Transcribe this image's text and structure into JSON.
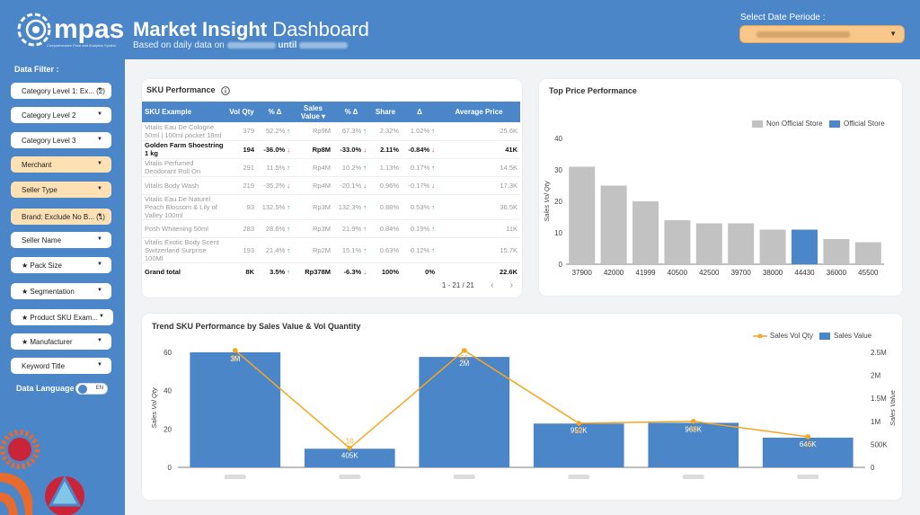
{
  "header": {
    "logo_text": "mpas",
    "logo_sub": "Comprehensive Price and Analytics System",
    "title_bold": "Market Insight",
    "title_rest": " Dashboard",
    "subtitle_prefix": "Based on daily data on",
    "subtitle_mid": "until",
    "date_label": "Select Date Periode :"
  },
  "sidebar": {
    "title": "Data Filter :",
    "filters": [
      {
        "label": "Category Level 1: Ex... (2)"
      },
      {
        "label": "Category Level 2"
      },
      {
        "label": "Category Level 3"
      },
      {
        "label": "Merchant"
      },
      {
        "label": "Seller Type"
      },
      {
        "label": "Brand: Exclude No B... (1)"
      },
      {
        "label": "Seller Name"
      },
      {
        "label": "★ Pack Size"
      },
      {
        "label": "★ Segmentation"
      },
      {
        "label": "★ Product SKU Exam..."
      },
      {
        "label": "★ Manufacturer"
      },
      {
        "label": "Keyword Title"
      }
    ],
    "language_label": "Data Language",
    "toggle_label": "EN"
  },
  "sku": {
    "title": "SKU Performance",
    "columns": [
      "SKU Example",
      "Vol Qty",
      "% Δ",
      "Sales Value ▾",
      "% Δ",
      "Share",
      "Δ",
      "Average Price"
    ],
    "rows": [
      [
        "Vitalis Eau De Cologne 50ml | 100ml pocket 18ml",
        "379",
        "52.2% ↑",
        "Rp9M",
        "67.3% ↑",
        "2.32%",
        "1.02% ↑",
        "25.6K"
      ],
      [
        "Golden Farm Shoestring 1 kg",
        "194",
        "-36.0% ↓",
        "Rp8M",
        "-33.0% ↓",
        "2.11%",
        "-0.84% ↓",
        "41K"
      ],
      [
        "Vitalis Perfumed Deodorant Roll On",
        "291",
        "11.5% ↑",
        "Rp4M",
        "10.2% ↑",
        "1.13%",
        "0.17% ↑",
        "14.5K"
      ],
      [
        "Vitalis Body Wash",
        "219",
        "-35.2% ↓",
        "Rp4M",
        "-20.1% ↓",
        "0.96%",
        "-0.17% ↓",
        "17.3K"
      ],
      [
        "Vitalis Eau De Naturel Peach Blossom & Lily of Valley 100ml",
        "93",
        "132.5% ↑",
        "Rp3M",
        "132.3% ↑",
        "0.88%",
        "0.53% ↑",
        "36.5K"
      ],
      [
        "Posh Whitening 50ml",
        "283",
        "28.6% ↑",
        "Rp3M",
        "21.9% ↑",
        "0.84%",
        "0.19% ↑",
        "11K"
      ],
      [
        "Vitalis Exotic Body Scent Switzerland Surprise 100Ml",
        "193",
        "21.4% ↑",
        "Rp2M",
        "15.1% ↑",
        "0.63%",
        "0.12% ↑",
        "15.7K"
      ]
    ],
    "total": [
      "Grand total",
      "8K",
      "3.5% ↑",
      "Rp378M",
      "-6.3% ↓",
      "100%",
      "0%",
      "22.6K"
    ],
    "pager": "1 - 21 / 21"
  },
  "top_price": {
    "title": "Top Price Performance",
    "legend": [
      "Non Official Store",
      "Official Store"
    ],
    "colors": {
      "non_official": "#c2c2c2",
      "official": "#4a86c8"
    },
    "ylabel": "Sales Vol Qty"
  },
  "trend": {
    "title": "Trend SKU Performance by Sales Value & Vol Quantity",
    "legend": [
      "Sales Vol Qty",
      "Sales Value"
    ],
    "ylabel_left": "Sales Vol Qty",
    "ylabel_right": "Sales Value"
  },
  "chart_data": [
    {
      "type": "bar",
      "title": "Top Price Performance",
      "categories": [
        "37900",
        "42000",
        "41999",
        "40500",
        "42500",
        "39700",
        "38000",
        "44430",
        "36000",
        "45500"
      ],
      "values": [
        31,
        25,
        20,
        14,
        13,
        13,
        11,
        11,
        8,
        7
      ],
      "store_type": [
        "Non Official Store",
        "Non Official Store",
        "Non Official Store",
        "Non Official Store",
        "Non Official Store",
        "Non Official Store",
        "Non Official Store",
        "Official Store",
        "Non Official Store",
        "Non Official Store"
      ],
      "ylabel": "Sales Vol Qty",
      "ylim": [
        0,
        40
      ],
      "yticks": [
        0,
        10,
        20,
        30,
        40
      ]
    },
    {
      "type": "bar",
      "title": "Trend SKU Performance by Sales Value & Vol Quantity",
      "categories": [
        "",
        "",
        "",
        "",
        "",
        ""
      ],
      "series": [
        {
          "name": "Sales Value",
          "type": "bar",
          "values": [
            2500000,
            405000,
            2400000,
            952000,
            968000,
            646000
          ],
          "labels": [
            "3M",
            "405K",
            "2M",
            "952K",
            "968K",
            "646K"
          ],
          "ylim": [
            0,
            2500000
          ],
          "yticks": [
            0,
            500000,
            1000000,
            1500000,
            2000000,
            2500000
          ],
          "yticklabels": [
            "0",
            "500K",
            "1M",
            "1.5M",
            "2M",
            "2.5M"
          ]
        },
        {
          "name": "Sales Vol Qty",
          "type": "line",
          "values": [
            61,
            10,
            61,
            23,
            24,
            16
          ],
          "labels": [
            "61",
            "10",
            "61",
            "23",
            "24",
            "16"
          ],
          "ylim": [
            0,
            60
          ],
          "yticks": [
            0,
            20,
            40,
            60
          ]
        }
      ]
    }
  ]
}
